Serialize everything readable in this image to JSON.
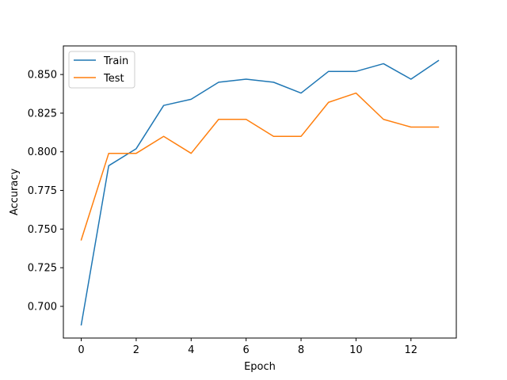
{
  "chart_data": {
    "type": "line",
    "title": "",
    "xlabel": "Epoch",
    "ylabel": "Accuracy",
    "x": [
      0,
      1,
      2,
      3,
      4,
      5,
      6,
      7,
      8,
      9,
      10,
      11,
      12,
      13
    ],
    "xlim": [
      -0.65,
      13.65
    ],
    "ylim": [
      0.6795,
      0.8685
    ],
    "xticks": [
      0,
      2,
      4,
      6,
      8,
      10,
      12
    ],
    "xtick_labels": [
      "0",
      "2",
      "4",
      "6",
      "8",
      "10",
      "12"
    ],
    "yticks": [
      0.7,
      0.725,
      0.75,
      0.775,
      0.8,
      0.825,
      0.85
    ],
    "ytick_labels": [
      "0.700",
      "0.725",
      "0.750",
      "0.775",
      "0.800",
      "0.825",
      "0.850"
    ],
    "grid": false,
    "legend_position": "top-left",
    "series": [
      {
        "name": "Train",
        "color": "#1f77b4",
        "values": [
          0.688,
          0.791,
          0.802,
          0.83,
          0.834,
          0.845,
          0.847,
          0.845,
          0.838,
          0.852,
          0.852,
          0.857,
          0.847,
          0.859
        ]
      },
      {
        "name": "Test",
        "color": "#ff7f0e",
        "values": [
          0.743,
          0.799,
          0.799,
          0.81,
          0.799,
          0.821,
          0.821,
          0.81,
          0.81,
          0.832,
          0.838,
          0.821,
          0.816,
          0.816
        ]
      }
    ]
  }
}
